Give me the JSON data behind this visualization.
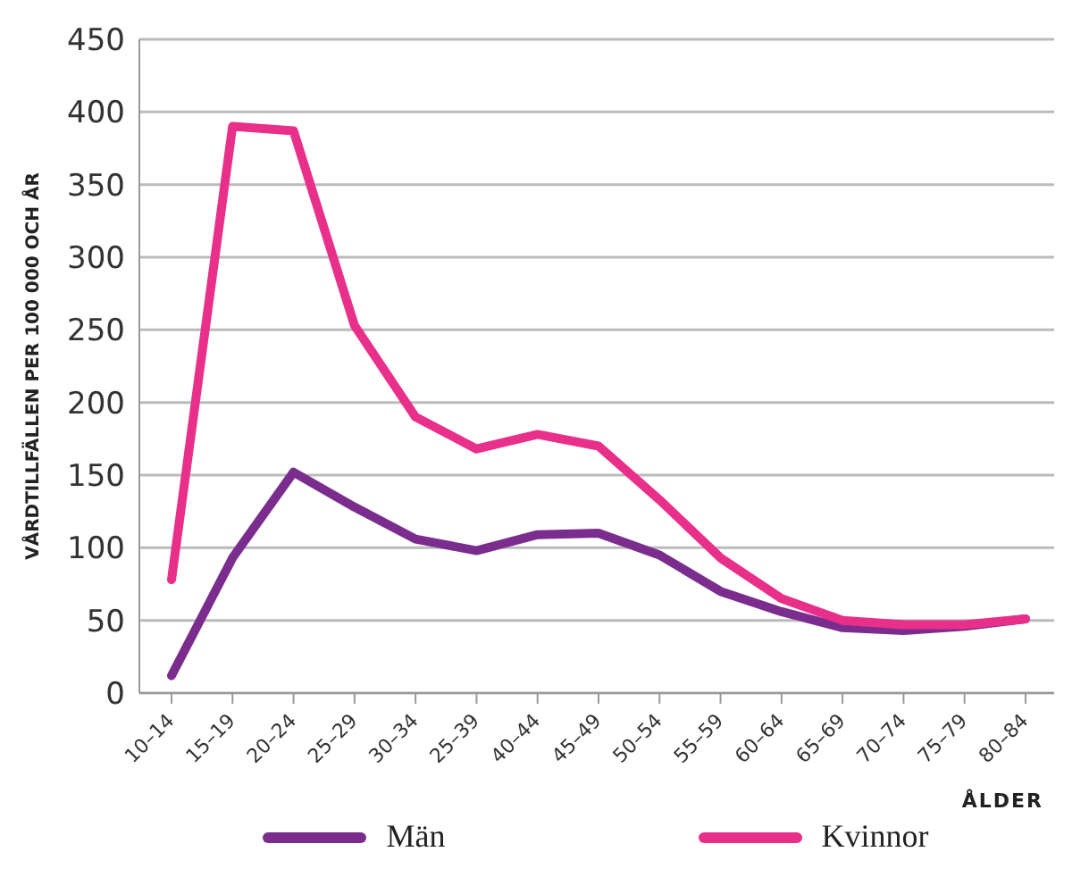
{
  "chart_data": {
    "type": "line",
    "ylabel": "VÅRDTILLFÄLLEN PER 100 000 OCH ÅR",
    "xlabel": "ÅLDER",
    "categories": [
      "10–14",
      "15–19",
      "20–24",
      "25–29",
      "30–34",
      "25–39",
      "40–44",
      "45–49",
      "50–54",
      "55–59",
      "60–64",
      "65–69",
      "70–74",
      "75–79",
      "80–84"
    ],
    "series": [
      {
        "name": "Män",
        "color": "#7b2d8e",
        "values": [
          12,
          93,
          152,
          128,
          106,
          98,
          109,
          110,
          95,
          70,
          56,
          45,
          43,
          46,
          51
        ]
      },
      {
        "name": "Kvinnor",
        "color": "#e8308a",
        "values": [
          78,
          390,
          387,
          253,
          190,
          168,
          178,
          170,
          133,
          93,
          65,
          50,
          47,
          47,
          51
        ]
      }
    ],
    "ylim": [
      0,
      450
    ],
    "yticks": [
      0,
      50,
      100,
      150,
      200,
      250,
      300,
      350,
      400,
      450
    ],
    "grid": "y",
    "legend": "bottom",
    "marker": "none",
    "line_style": "solid"
  }
}
